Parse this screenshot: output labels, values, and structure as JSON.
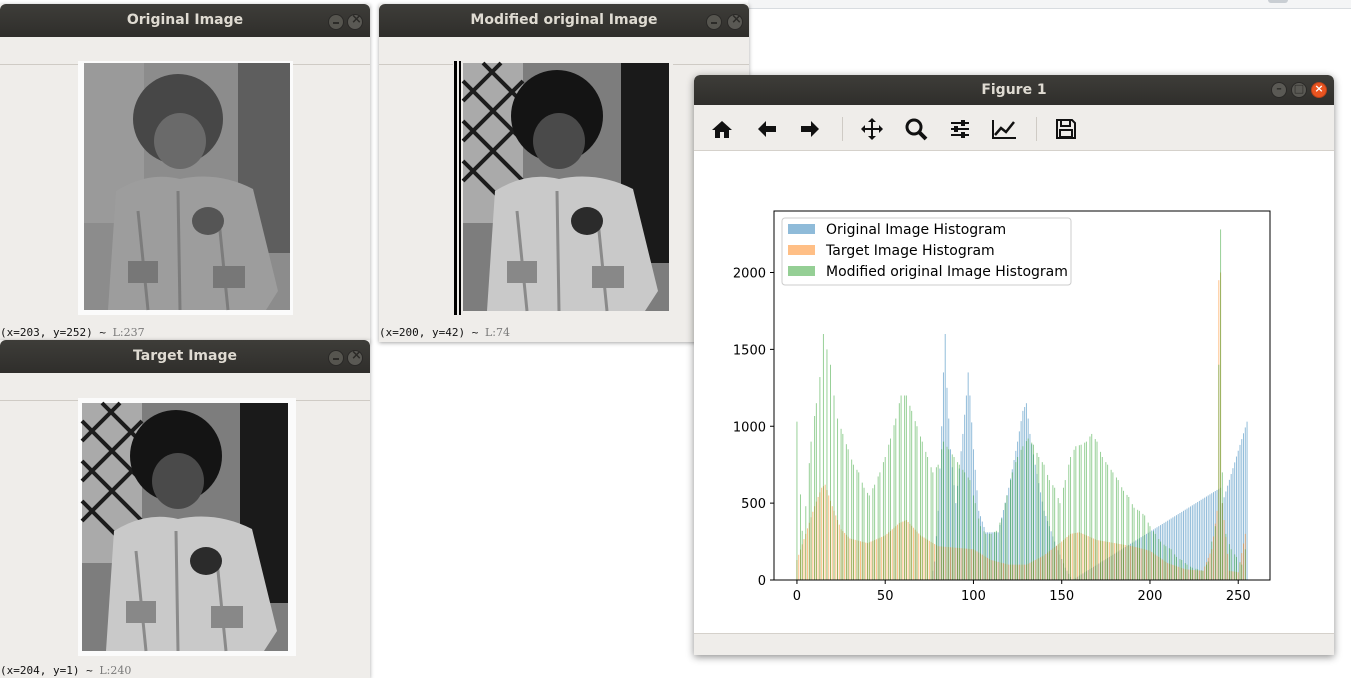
{
  "windows": {
    "original": {
      "title": "Original Image",
      "status_coords": "(x=203, y=252) ~",
      "status_lum": "L:237"
    },
    "modified": {
      "title": "Modified original Image",
      "status_coords": "(x=200, y=42) ~",
      "status_lum": "L:74"
    },
    "target": {
      "title": "Target Image",
      "status_coords": "(x=204, y=1) ~",
      "status_lum": "L:240"
    }
  },
  "figure": {
    "title": "Figure 1",
    "toolbar": {
      "icons": [
        "home-icon",
        "back-arrow-icon",
        "forward-arrow-icon",
        "pan-icon",
        "zoom-icon",
        "configure-subplots-icon",
        "edit-axes-icon",
        "save-icon"
      ]
    }
  },
  "colors": {
    "original": "#1f77b4",
    "target": "#ff7f0e",
    "modified": "#2ca02c",
    "titlebar": "#3a3935",
    "close_button": "#e95420"
  },
  "chart_data": {
    "type": "bar",
    "title": "",
    "xlabel": "",
    "ylabel": "",
    "xlim": [
      -13,
      268
    ],
    "ylim": [
      0,
      2400
    ],
    "xticks": [
      "0",
      "50",
      "100",
      "150",
      "200",
      "250"
    ],
    "yticks": [
      "0",
      "500",
      "1000",
      "1500",
      "2000"
    ],
    "legend_position": "top-left",
    "alpha": 0.5,
    "series": [
      {
        "name": "Original Image Histogram",
        "color": "#1f77b4",
        "points": [
          {
            "x": 76,
            "y": 0
          },
          {
            "x": 78,
            "y": 120
          },
          {
            "x": 80,
            "y": 450
          },
          {
            "x": 82,
            "y": 1000
          },
          {
            "x": 83,
            "y": 1350
          },
          {
            "x": 84,
            "y": 1600
          },
          {
            "x": 85,
            "y": 1250
          },
          {
            "x": 87,
            "y": 850
          },
          {
            "x": 90,
            "y": 500
          },
          {
            "x": 94,
            "y": 950
          },
          {
            "x": 96,
            "y": 1200
          },
          {
            "x": 97,
            "y": 1350
          },
          {
            "x": 98,
            "y": 1200
          },
          {
            "x": 100,
            "y": 850
          },
          {
            "x": 103,
            "y": 450
          },
          {
            "x": 107,
            "y": 310
          },
          {
            "x": 114,
            "y": 310
          },
          {
            "x": 120,
            "y": 600
          },
          {
            "x": 125,
            "y": 900
          },
          {
            "x": 128,
            "y": 1100
          },
          {
            "x": 130,
            "y": 1150
          },
          {
            "x": 132,
            "y": 950
          },
          {
            "x": 135,
            "y": 750
          },
          {
            "x": 140,
            "y": 450
          },
          {
            "x": 146,
            "y": 250
          },
          {
            "x": 152,
            "y": 80
          },
          {
            "x": 156,
            "y": 0
          },
          {
            "x": 240,
            "y": 600
          },
          {
            "x": 241,
            "y": 500
          },
          {
            "x": 255,
            "y": 1030
          }
        ]
      },
      {
        "name": "Target Image Histogram",
        "color": "#ff7f0e",
        "points": [
          {
            "x": 0,
            "y": 130
          },
          {
            "x": 5,
            "y": 300
          },
          {
            "x": 10,
            "y": 480
          },
          {
            "x": 14,
            "y": 600
          },
          {
            "x": 16,
            "y": 620
          },
          {
            "x": 20,
            "y": 480
          },
          {
            "x": 25,
            "y": 330
          },
          {
            "x": 30,
            "y": 270
          },
          {
            "x": 40,
            "y": 240
          },
          {
            "x": 50,
            "y": 290
          },
          {
            "x": 58,
            "y": 370
          },
          {
            "x": 62,
            "y": 390
          },
          {
            "x": 70,
            "y": 290
          },
          {
            "x": 80,
            "y": 220
          },
          {
            "x": 90,
            "y": 210
          },
          {
            "x": 100,
            "y": 200
          },
          {
            "x": 110,
            "y": 130
          },
          {
            "x": 120,
            "y": 100
          },
          {
            "x": 130,
            "y": 100
          },
          {
            "x": 140,
            "y": 160
          },
          {
            "x": 150,
            "y": 250
          },
          {
            "x": 155,
            "y": 300
          },
          {
            "x": 160,
            "y": 310
          },
          {
            "x": 170,
            "y": 260
          },
          {
            "x": 180,
            "y": 240
          },
          {
            "x": 190,
            "y": 220
          },
          {
            "x": 200,
            "y": 190
          },
          {
            "x": 210,
            "y": 110
          },
          {
            "x": 220,
            "y": 70
          },
          {
            "x": 230,
            "y": 60
          },
          {
            "x": 235,
            "y": 200
          },
          {
            "x": 238,
            "y": 450
          },
          {
            "x": 239,
            "y": 1950
          },
          {
            "x": 240,
            "y": 2000
          },
          {
            "x": 241,
            "y": 500
          },
          {
            "x": 245,
            "y": 60
          },
          {
            "x": 250,
            "y": 50
          },
          {
            "x": 254,
            "y": 300
          }
        ]
      },
      {
        "name": "Modified original Image Histogram",
        "color": "#2ca02c",
        "points": [
          {
            "x": 0,
            "y": 1030
          },
          {
            "x": 3,
            "y": 320
          },
          {
            "x": 5,
            "y": 480
          },
          {
            "x": 8,
            "y": 900
          },
          {
            "x": 11,
            "y": 1150
          },
          {
            "x": 13,
            "y": 1320
          },
          {
            "x": 15,
            "y": 1600
          },
          {
            "x": 17,
            "y": 1500
          },
          {
            "x": 19,
            "y": 1400
          },
          {
            "x": 21,
            "y": 1200
          },
          {
            "x": 23,
            "y": 1050
          },
          {
            "x": 26,
            "y": 950
          },
          {
            "x": 29,
            "y": 850
          },
          {
            "x": 32,
            "y": 750
          },
          {
            "x": 35,
            "y": 700
          },
          {
            "x": 38,
            "y": 600
          },
          {
            "x": 41,
            "y": 550
          },
          {
            "x": 44,
            "y": 620
          },
          {
            "x": 47,
            "y": 700
          },
          {
            "x": 50,
            "y": 800
          },
          {
            "x": 53,
            "y": 920
          },
          {
            "x": 56,
            "y": 1050
          },
          {
            "x": 59,
            "y": 1200
          },
          {
            "x": 62,
            "y": 1200
          },
          {
            "x": 65,
            "y": 1100
          },
          {
            "x": 68,
            "y": 1000
          },
          {
            "x": 71,
            "y": 900
          },
          {
            "x": 74,
            "y": 800
          },
          {
            "x": 77,
            "y": 700
          },
          {
            "x": 80,
            "y": 750
          },
          {
            "x": 83,
            "y": 900
          },
          {
            "x": 86,
            "y": 850
          },
          {
            "x": 89,
            "y": 800
          },
          {
            "x": 92,
            "y": 750
          },
          {
            "x": 95,
            "y": 700
          },
          {
            "x": 98,
            "y": 650
          },
          {
            "x": 101,
            "y": 500
          },
          {
            "x": 104,
            "y": 350
          },
          {
            "x": 107,
            "y": 300
          },
          {
            "x": 110,
            "y": 300
          },
          {
            "x": 113,
            "y": 320
          },
          {
            "x": 116,
            "y": 400
          },
          {
            "x": 119,
            "y": 550
          },
          {
            "x": 122,
            "y": 700
          },
          {
            "x": 125,
            "y": 800
          },
          {
            "x": 128,
            "y": 870
          },
          {
            "x": 131,
            "y": 920
          },
          {
            "x": 134,
            "y": 880
          },
          {
            "x": 137,
            "y": 800
          },
          {
            "x": 140,
            "y": 750
          },
          {
            "x": 143,
            "y": 650
          },
          {
            "x": 146,
            "y": 600
          },
          {
            "x": 149,
            "y": 500
          },
          {
            "x": 152,
            "y": 650
          },
          {
            "x": 155,
            "y": 800
          },
          {
            "x": 158,
            "y": 870
          },
          {
            "x": 161,
            "y": 880
          },
          {
            "x": 164,
            "y": 900
          },
          {
            "x": 167,
            "y": 950
          },
          {
            "x": 170,
            "y": 900
          },
          {
            "x": 173,
            "y": 800
          },
          {
            "x": 176,
            "y": 750
          },
          {
            "x": 179,
            "y": 700
          },
          {
            "x": 182,
            "y": 650
          },
          {
            "x": 185,
            "y": 580
          },
          {
            "x": 188,
            "y": 540
          },
          {
            "x": 191,
            "y": 470
          },
          {
            "x": 194,
            "y": 450
          },
          {
            "x": 197,
            "y": 420
          },
          {
            "x": 200,
            "y": 350
          },
          {
            "x": 203,
            "y": 300
          },
          {
            "x": 206,
            "y": 250
          },
          {
            "x": 209,
            "y": 220
          },
          {
            "x": 212,
            "y": 200
          },
          {
            "x": 215,
            "y": 150
          },
          {
            "x": 218,
            "y": 130
          },
          {
            "x": 221,
            "y": 100
          },
          {
            "x": 224,
            "y": 80
          },
          {
            "x": 227,
            "y": 70
          },
          {
            "x": 230,
            "y": 60
          },
          {
            "x": 233,
            "y": 120
          },
          {
            "x": 235,
            "y": 250
          },
          {
            "x": 237,
            "y": 350
          },
          {
            "x": 239,
            "y": 1400
          },
          {
            "x": 240,
            "y": 2280
          },
          {
            "x": 241,
            "y": 700
          },
          {
            "x": 243,
            "y": 300
          },
          {
            "x": 246,
            "y": 200
          },
          {
            "x": 249,
            "y": 150
          },
          {
            "x": 252,
            "y": 100
          },
          {
            "x": 254,
            "y": 200
          }
        ]
      }
    ]
  }
}
